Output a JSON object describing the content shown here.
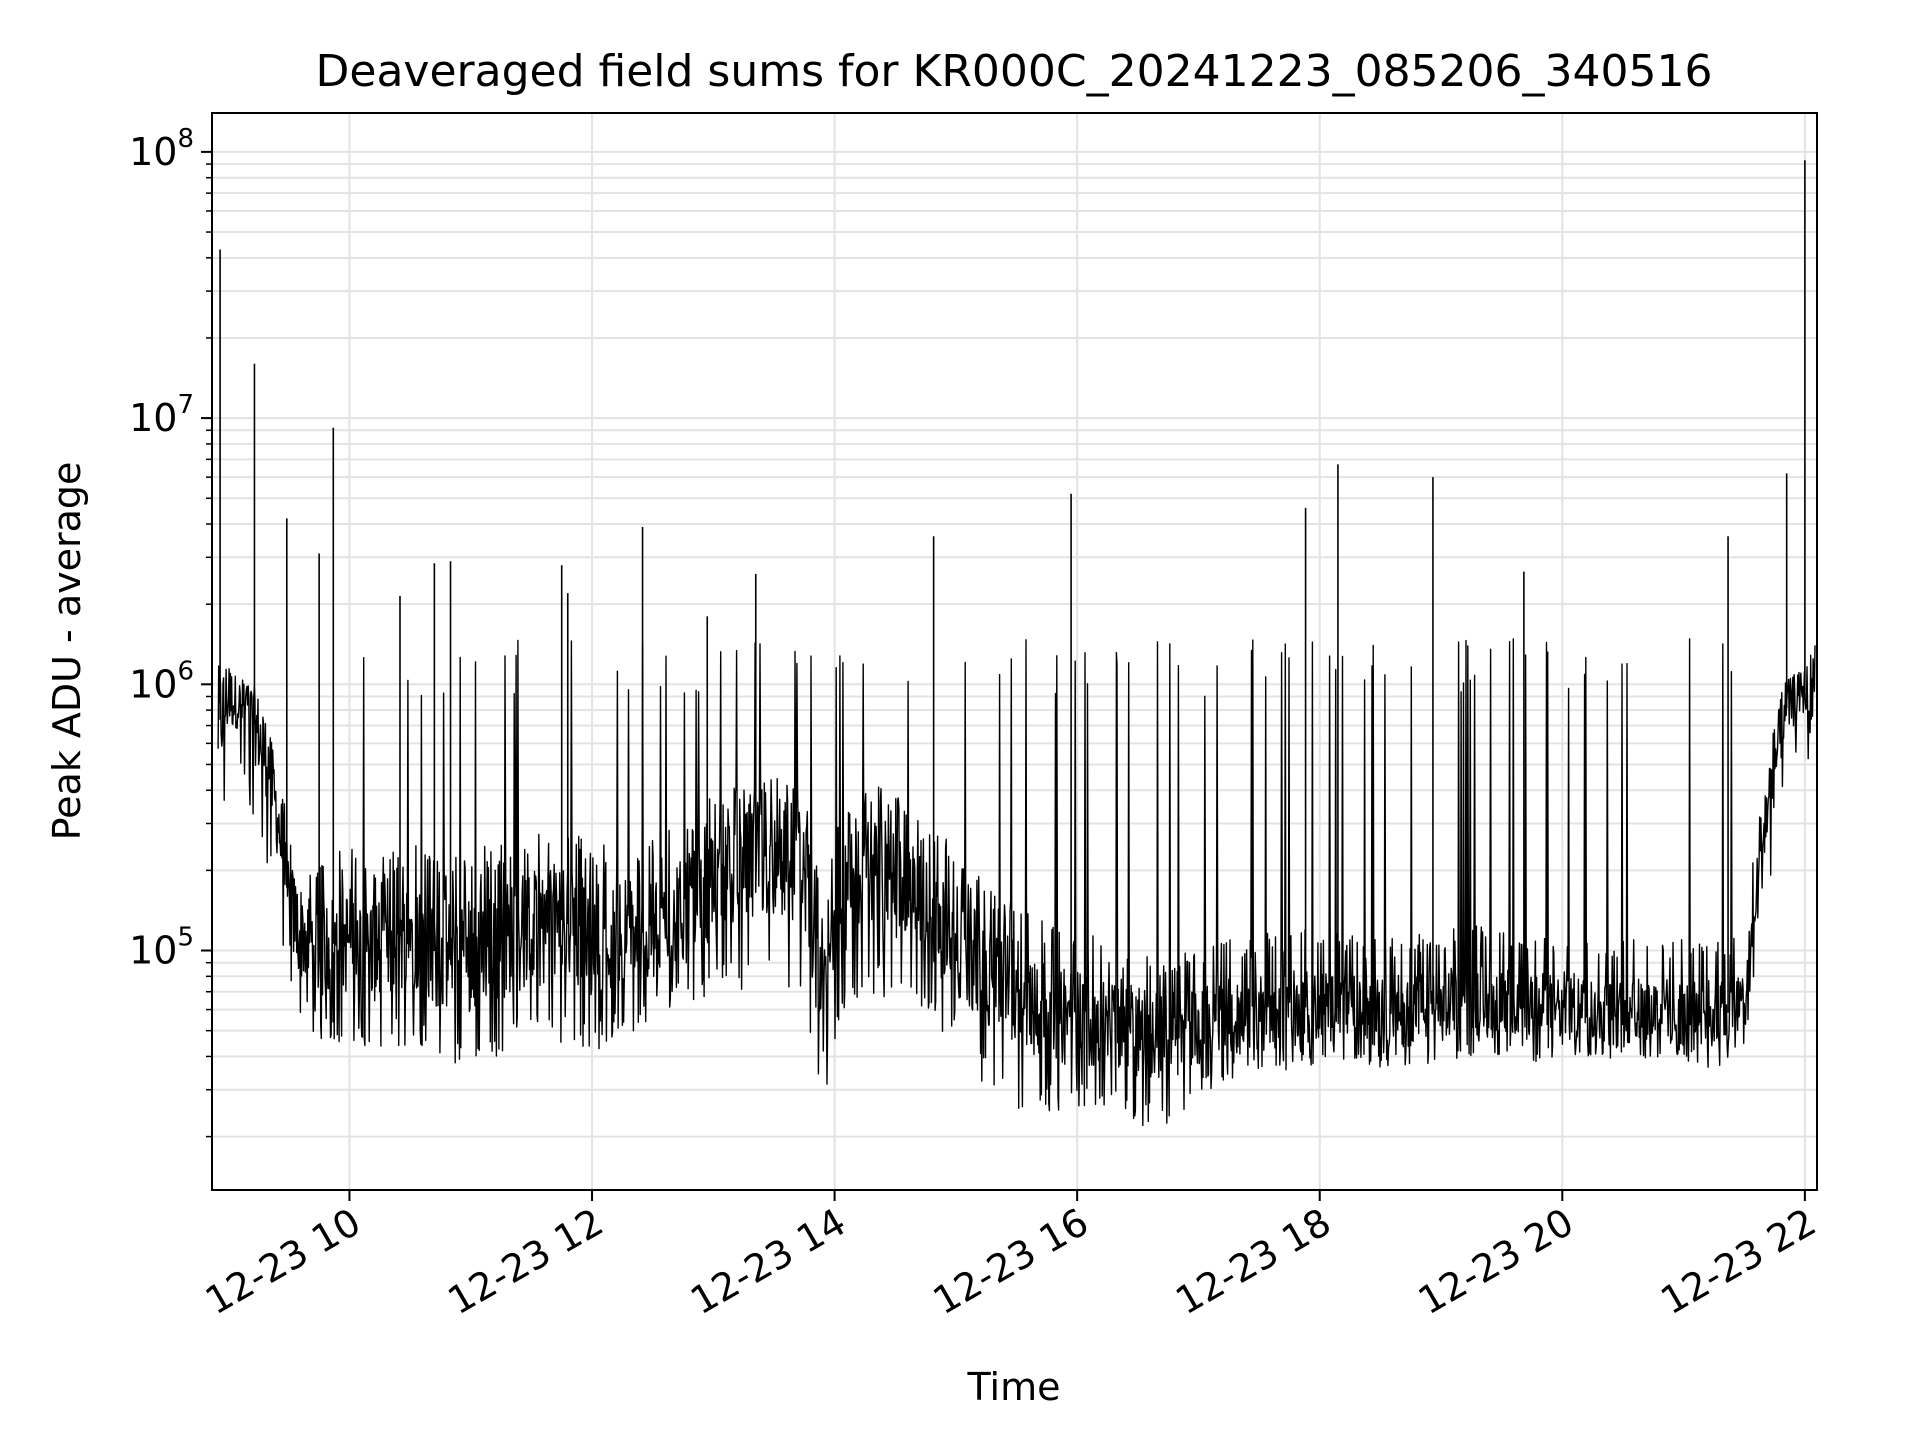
{
  "chart_data": {
    "type": "line",
    "title": "Deaveraged field sums for KR000C_20241223_085206_340516",
    "xlabel": "Time",
    "ylabel": "Peak ADU - average",
    "y_scale": "log",
    "grid": "major and minor, light gray",
    "line_color": "#000000",
    "xlim": [
      "2024-12-23 08:52",
      "2024-12-23 22:06"
    ],
    "ylim": [
      12600,
      140000000
    ],
    "x_ticks": [
      {
        "value": "2024-12-23 10:00",
        "label": "12-23 10"
      },
      {
        "value": "2024-12-23 12:00",
        "label": "12-23 12"
      },
      {
        "value": "2024-12-23 14:00",
        "label": "12-23 14"
      },
      {
        "value": "2024-12-23 16:00",
        "label": "12-23 16"
      },
      {
        "value": "2024-12-23 18:00",
        "label": "12-23 18"
      },
      {
        "value": "2024-12-23 20:00",
        "label": "12-23 20"
      },
      {
        "value": "2024-12-23 22:00",
        "label": "12-23 22"
      }
    ],
    "y_ticks": [
      {
        "value": 100000,
        "base": "10",
        "exp": "5"
      },
      {
        "value": 1000000,
        "base": "10",
        "exp": "6"
      },
      {
        "value": 10000000,
        "base": "10",
        "exp": "7"
      },
      {
        "value": 100000000,
        "base": "10",
        "exp": "8"
      }
    ],
    "series": [
      {
        "x": [
          "2024-12-23 08:55",
          "2024-12-23 09:00",
          "2024-12-23 09:05",
          "2024-12-23 09:10",
          "2024-12-23 09:15",
          "2024-12-23 09:20",
          "2024-12-23 09:25",
          "2024-12-23 09:30",
          "2024-12-23 09:35",
          "2024-12-23 09:40",
          "2024-12-23 09:45",
          "2024-12-23 09:50",
          "2024-12-23 10:00",
          "2024-12-23 10:15",
          "2024-12-23 10:30",
          "2024-12-23 10:45",
          "2024-12-23 11:00",
          "2024-12-23 11:15",
          "2024-12-23 11:30",
          "2024-12-23 11:45",
          "2024-12-23 12:00",
          "2024-12-23 12:15",
          "2024-12-23 12:30",
          "2024-12-23 12:45",
          "2024-12-23 13:00",
          "2024-12-23 13:15",
          "2024-12-23 13:30",
          "2024-12-23 13:45",
          "2024-12-23 13:55",
          "2024-12-23 14:00",
          "2024-12-23 14:15",
          "2024-12-23 14:30",
          "2024-12-23 14:45",
          "2024-12-23 15:00",
          "2024-12-23 15:15",
          "2024-12-23 15:30",
          "2024-12-23 15:45",
          "2024-12-23 16:00",
          "2024-12-23 16:15",
          "2024-12-23 16:30",
          "2024-12-23 16:45",
          "2024-12-23 17:00",
          "2024-12-23 17:15",
          "2024-12-23 17:30",
          "2024-12-23 17:45",
          "2024-12-23 18:00",
          "2024-12-23 18:15",
          "2024-12-23 18:30",
          "2024-12-23 18:45",
          "2024-12-23 19:00",
          "2024-12-23 19:15",
          "2024-12-23 19:30",
          "2024-12-23 19:45",
          "2024-12-23 20:00",
          "2024-12-23 20:15",
          "2024-12-23 20:30",
          "2024-12-23 20:45",
          "2024-12-23 21:00",
          "2024-12-23 21:15",
          "2024-12-23 21:30",
          "2024-12-23 21:40",
          "2024-12-23 21:50",
          "2024-12-23 22:00",
          "2024-12-23 22:05"
        ],
        "y": [
          700000,
          900000,
          850000,
          800000,
          650000,
          500000,
          300000,
          150000,
          120000,
          110000,
          100000,
          105000,
          110000,
          100000,
          120000,
          95000,
          100000,
          110000,
          120000,
          130000,
          110000,
          120000,
          115000,
          140000,
          170000,
          200000,
          220000,
          210000,
          60000,
          130000,
          200000,
          180000,
          140000,
          110000,
          80000,
          70000,
          60000,
          55000,
          55000,
          50000,
          48000,
          52000,
          56000,
          58000,
          60000,
          62000,
          60000,
          58000,
          60000,
          62000,
          65000,
          63000,
          60000,
          62000,
          60000,
          58000,
          60000,
          58000,
          57000,
          60000,
          300000,
          800000,
          950000,
          900000
        ],
        "low": [
          230000,
          400000,
          500000,
          350000,
          250000,
          200000,
          120000,
          70000,
          55000,
          50000,
          45000,
          45000,
          45000,
          40000,
          45000,
          40000,
          35000,
          40000,
          45000,
          45000,
          40000,
          45000,
          55000,
          60000,
          65000,
          70000,
          75000,
          65000,
          20000,
          45000,
          70000,
          65000,
          55000,
          45000,
          30000,
          25000,
          25000,
          25000,
          25000,
          22000,
          22000,
          28000,
          32000,
          33000,
          35000,
          37000,
          38000,
          36000,
          36000,
          38000,
          40000,
          40000,
          38000,
          40000,
          40000,
          38000,
          40000,
          38000,
          36000,
          40000,
          120000,
          450000,
          650000,
          220000
        ],
        "high": [
          1500000,
          1200000,
          1100000,
          1000000,
          900000,
          700000,
          450000,
          300000,
          250000,
          220000,
          230000,
          230000,
          250000,
          220000,
          260000,
          230000,
          240000,
          260000,
          280000,
          300000,
          250000,
          280000,
          260000,
          320000,
          380000,
          420000,
          450000,
          430000,
          130000,
          300000,
          420000,
          400000,
          320000,
          250000,
          180000,
          150000,
          130000,
          120000,
          110000,
          100000,
          95000,
          100000,
          110000,
          115000,
          120000,
          120000,
          115000,
          110000,
          115000,
          120000,
          125000,
          120000,
          115000,
          120000,
          115000,
          110000,
          115000,
          110000,
          110000,
          120000,
          500000,
          1100000,
          1300000,
          1400000
        ],
        "spikes": [
          {
            "x": "2024-12-23 08:56",
            "y": 43000000
          },
          {
            "x": "2024-12-23 09:13",
            "y": 16000000
          },
          {
            "x": "2024-12-23 09:29",
            "y": 4200000
          },
          {
            "x": "2024-12-23 09:52",
            "y": 9200000
          },
          {
            "x": "2024-12-23 09:45",
            "y": 3100000
          },
          {
            "x": "2024-12-23 10:25",
            "y": 2150000
          },
          {
            "x": "2024-12-23 10:42",
            "y": 2850000
          },
          {
            "x": "2024-12-23 10:50",
            "y": 2900000
          },
          {
            "x": "2024-12-23 11:45",
            "y": 2800000
          },
          {
            "x": "2024-12-23 11:48",
            "y": 2200000
          },
          {
            "x": "2024-12-23 12:25",
            "y": 3900000
          },
          {
            "x": "2024-12-23 12:57",
            "y": 1800000
          },
          {
            "x": "2024-12-23 13:21",
            "y": 2600000
          },
          {
            "x": "2024-12-23 14:49",
            "y": 3600000
          },
          {
            "x": "2024-12-23 15:57",
            "y": 5200000
          },
          {
            "x": "2024-12-23 17:53",
            "y": 4600000
          },
          {
            "x": "2024-12-23 18:09",
            "y": 6700000
          },
          {
            "x": "2024-12-23 18:56",
            "y": 6000000
          },
          {
            "x": "2024-12-23 19:41",
            "y": 2650000
          },
          {
            "x": "2024-12-23 21:22",
            "y": 3600000
          },
          {
            "x": "2024-12-23 21:51",
            "y": 6200000
          },
          {
            "x": "2024-12-23 22:00",
            "y": 93000000
          }
        ]
      }
    ]
  }
}
